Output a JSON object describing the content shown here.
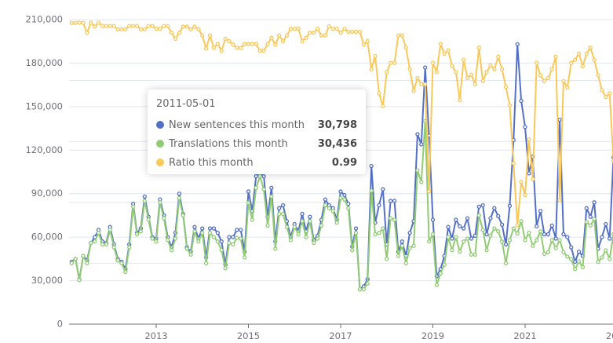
{
  "chart_data": {
    "type": "line",
    "ylim": [
      0,
      210000
    ],
    "yticks": [
      "0",
      "30,000",
      "60,000",
      "90,000",
      "120,000",
      "150,000",
      "180,000",
      "210,000"
    ],
    "ytick_values": [
      0,
      30000,
      60000,
      90000,
      120000,
      150000,
      180000,
      210000
    ],
    "ratio_axis": {
      "ylim": [
        0,
        1
      ],
      "visible": false,
      "grid_step": 0.2
    },
    "xticks": [
      "2013",
      "2015",
      "2017",
      "2019",
      "2021",
      "2023"
    ],
    "grid": true,
    "x": [
      "2011-03-01",
      "2011-04-01",
      "2011-05-01",
      "2011-06-01",
      "2011-07-01",
      "2011-08-01",
      "2011-09-01",
      "2011-10-01",
      "2011-11-01",
      "2011-12-01",
      "2012-01-01",
      "2012-02-01",
      "2012-03-01",
      "2012-04-01",
      "2012-05-01",
      "2012-06-01",
      "2012-07-01",
      "2012-08-01",
      "2012-09-01",
      "2012-10-01",
      "2012-11-01",
      "2012-12-01",
      "2013-01-01",
      "2013-02-01",
      "2013-03-01",
      "2013-04-01",
      "2013-05-01",
      "2013-06-01",
      "2013-07-01",
      "2013-08-01",
      "2013-09-01",
      "2013-10-01",
      "2013-11-01",
      "2013-12-01",
      "2014-01-01",
      "2014-02-01",
      "2014-03-01",
      "2014-04-01",
      "2014-05-01",
      "2014-06-01",
      "2014-07-01",
      "2014-08-01",
      "2014-09-01",
      "2014-10-01",
      "2014-11-01",
      "2014-12-01",
      "2015-01-01",
      "2015-02-01",
      "2015-03-01",
      "2015-04-01",
      "2015-05-01",
      "2015-06-01",
      "2015-07-01",
      "2015-08-01",
      "2015-09-01",
      "2015-10-01",
      "2015-11-01",
      "2015-12-01",
      "2016-01-01",
      "2016-02-01",
      "2016-03-01",
      "2016-04-01",
      "2016-05-01",
      "2016-06-01",
      "2016-07-01",
      "2016-08-01",
      "2016-09-01",
      "2016-10-01",
      "2016-11-01",
      "2016-12-01",
      "2017-01-01",
      "2017-02-01",
      "2017-03-01",
      "2017-04-01",
      "2017-05-01",
      "2017-06-01",
      "2017-07-01",
      "2017-08-01",
      "2017-09-01",
      "2017-10-01",
      "2017-11-01",
      "2017-12-01",
      "2018-01-01",
      "2018-02-01",
      "2018-03-01",
      "2018-04-01",
      "2018-05-01",
      "2018-06-01",
      "2018-07-01",
      "2018-08-01",
      "2018-09-01",
      "2018-10-01",
      "2018-11-01",
      "2018-12-01",
      "2019-01-01",
      "2019-02-01",
      "2019-03-01",
      "2019-04-01",
      "2019-05-01",
      "2019-06-01",
      "2019-07-01",
      "2019-08-01",
      "2019-09-01",
      "2019-10-01",
      "2019-11-01",
      "2019-12-01",
      "2020-01-01",
      "2020-02-01",
      "2020-03-01",
      "2020-04-01",
      "2020-05-01",
      "2020-06-01",
      "2020-07-01",
      "2020-08-01",
      "2020-09-01",
      "2020-10-01",
      "2020-11-01",
      "2020-12-01",
      "2021-01-01",
      "2021-02-01",
      "2021-03-01",
      "2021-04-01",
      "2021-05-01",
      "2021-06-01",
      "2021-07-01",
      "2021-08-01",
      "2021-09-01",
      "2021-10-01",
      "2021-11-01",
      "2021-12-01",
      "2022-01-01",
      "2022-02-01",
      "2022-03-01",
      "2022-04-01",
      "2022-05-01",
      "2022-06-01",
      "2022-07-01",
      "2022-08-01",
      "2022-09-01",
      "2022-10-01",
      "2022-11-01",
      "2022-12-01"
    ],
    "series": [
      {
        "name": "New sentences this month",
        "color": "#5470c6",
        "axis": "left",
        "values": [
          43000,
          45000,
          30798,
          47000,
          44000,
          56000,
          60000,
          65000,
          57000,
          56000,
          67000,
          55000,
          45000,
          43000,
          38000,
          55000,
          83000,
          63000,
          66000,
          88000,
          74000,
          60000,
          59000,
          86000,
          75000,
          60000,
          53000,
          63000,
          90000,
          76000,
          53000,
          50000,
          67000,
          59000,
          66000,
          46000,
          66000,
          66000,
          63000,
          57000,
          41000,
          60000,
          60000,
          65000,
          65000,
          50000,
          91500,
          78000,
          102000,
          104000,
          102000,
          74000,
          94000,
          57000,
          80000,
          82000,
          71000,
          60000,
          69000,
          64000,
          76000,
          64000,
          74000,
          58000,
          61000,
          72000,
          86000,
          82000,
          80000,
          72000,
          91500,
          89000,
          83000,
          53500,
          66000,
          24000,
          26000,
          31000,
          109000,
          70000,
          82000,
          93000,
          55000,
          85000,
          85000,
          50000,
          57000,
          47000,
          63000,
          71000,
          131000,
          124000,
          177000,
          130000,
          72000,
          33000,
          38000,
          47000,
          67000,
          59000,
          72000,
          67500,
          66000,
          73000,
          59000,
          61000,
          81000,
          82000,
          62000,
          73000,
          80000,
          74500,
          68600,
          55000,
          81600,
          127000,
          193000,
          154000,
          136000,
          104000,
          115500,
          67500,
          78000,
          62000,
          62000,
          68000,
          59000,
          141000,
          62000,
          60000,
          53000,
          43000,
          50000,
          47000,
          80000,
          74000,
          84000,
          52000,
          60000,
          69000,
          59000,
          115000
        ]
      },
      {
        "name": "Translations this month",
        "color": "#91cc75",
        "axis": "left",
        "values": [
          42000,
          45000,
          30436,
          47000,
          42000,
          56000,
          57000,
          63000,
          55000,
          55000,
          65000,
          53000,
          44000,
          42000,
          36000,
          53000,
          81000,
          62000,
          64000,
          85000,
          72000,
          59000,
          57000,
          84000,
          73000,
          58000,
          51000,
          59000,
          87000,
          75000,
          52000,
          48000,
          64000,
          57000,
          63000,
          42000,
          63000,
          60000,
          57000,
          51000,
          38500,
          56000,
          55000,
          59500,
          59000,
          46000,
          83700,
          72000,
          94000,
          102000,
          93000,
          68000,
          88000,
          52000,
          76000,
          76000,
          67000,
          58000,
          67000,
          62000,
          71000,
          60000,
          71000,
          56000,
          59000,
          68000,
          82000,
          80000,
          78000,
          70000,
          87000,
          86000,
          80000,
          51000,
          63000,
          24000,
          24000,
          28000,
          92000,
          62000,
          63000,
          66000,
          45000,
          73000,
          72000,
          47000,
          54000,
          42000,
          52500,
          54000,
          106000,
          98000,
          140000,
          57000,
          62000,
          27000,
          35000,
          41000,
          60000,
          51000,
          60000,
          50000,
          57000,
          59000,
          48000,
          48000,
          75000,
          65000,
          51000,
          61000,
          66000,
          64000,
          57000,
          42000,
          58000,
          66000,
          62500,
          71000,
          58000,
          63000,
          54000,
          58000,
          64000,
          48500,
          49600,
          58000,
          52500,
          58000,
          49600,
          46600,
          44800,
          38000,
          43300,
          39300,
          70500,
          68000,
          72600,
          42900,
          46000,
          51000,
          45000,
          62000
        ]
      },
      {
        "name": "Ratio this month",
        "color": "#fac858",
        "axis": "ratio",
        "values": [
          0.989,
          0.989,
          0.99,
          0.989,
          0.957,
          0.99,
          0.977,
          0.99,
          0.979,
          0.979,
          0.979,
          0.979,
          0.968,
          0.968,
          0.968,
          0.979,
          0.979,
          0.979,
          0.968,
          0.968,
          0.979,
          0.979,
          0.97,
          0.97,
          0.979,
          0.979,
          0.957,
          0.937,
          0.957,
          0.977,
          0.977,
          0.968,
          0.977,
          0.968,
          0.948,
          0.905,
          0.948,
          0.908,
          0.92,
          0.898,
          0.937,
          0.929,
          0.918,
          0.907,
          0.907,
          0.92,
          0.92,
          0.92,
          0.92,
          0.898,
          0.898,
          0.92,
          0.94,
          0.918,
          0.948,
          0.929,
          0.948,
          0.97,
          0.97,
          0.97,
          0.929,
          0.94,
          0.957,
          0.957,
          0.97,
          0.948,
          0.948,
          0.978,
          0.97,
          0.97,
          0.957,
          0.97,
          0.96,
          0.96,
          0.96,
          0.96,
          0.918,
          0.929,
          0.837,
          0.88,
          0.758,
          0.716,
          0.828,
          0.858,
          0.858,
          0.948,
          0.948,
          0.908,
          0.837,
          0.766,
          0.808,
          0.788,
          0.788,
          0.436,
          0.858,
          0.828,
          0.92,
          0.888,
          0.899,
          0.848,
          0.828,
          0.736,
          0.868,
          0.808,
          0.819,
          0.788,
          0.908,
          0.798,
          0.828,
          0.85,
          0.837,
          0.878,
          0.837,
          0.779,
          0.718,
          0.528,
          0.325,
          0.467,
          0.424,
          0.607,
          0.476,
          0.858,
          0.817,
          0.798,
          0.808,
          0.837,
          0.878,
          0.407,
          0.798,
          0.777,
          0.858,
          0.868,
          0.888,
          0.847,
          0.888,
          0.908,
          0.868,
          0.817,
          0.768,
          0.746,
          0.758,
          0.536
        ]
      }
    ]
  },
  "tooltip": {
    "date": "2011-05-01",
    "rows": [
      {
        "label": "New sentences this month",
        "value": "30,798",
        "color": "#5470c6"
      },
      {
        "label": "Translations this month",
        "value": "30,436",
        "color": "#91cc75"
      },
      {
        "label": "Ratio this month",
        "value": "0.99",
        "color": "#fac858"
      }
    ]
  }
}
